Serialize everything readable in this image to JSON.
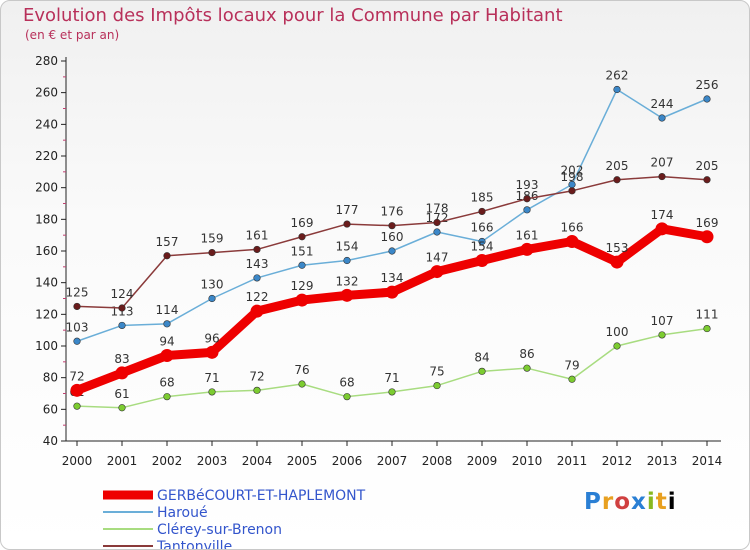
{
  "header": {
    "title": "Evolution des Impôts locaux pour la Commune par Habitant",
    "subtitle": "(en € et par an)"
  },
  "logo": {
    "letters": [
      "P",
      "r",
      "o",
      "x",
      "i",
      "t",
      "i"
    ],
    "text": "Proxiti"
  },
  "chart_data": {
    "type": "line",
    "title": "Evolution des Impôts locaux pour la Commune par Habitant",
    "subtitle": "(en € et par an)",
    "xlabel": "",
    "ylabel": "",
    "x": [
      2000,
      2001,
      2002,
      2003,
      2004,
      2005,
      2006,
      2007,
      2008,
      2009,
      2010,
      2011,
      2012,
      2013,
      2014
    ],
    "ylim": [
      40,
      280
    ],
    "yticks": [
      40,
      60,
      80,
      100,
      120,
      140,
      160,
      180,
      200,
      220,
      240,
      260,
      280
    ],
    "grid": false,
    "legend_position": "bottom-left",
    "series": [
      {
        "name": "GERBéCOURT-ET-HAPLEMONT",
        "color": "#ee0000",
        "marker_color": "#ee0000",
        "emphasis": true,
        "values": [
          72,
          83,
          94,
          96,
          122,
          129,
          132,
          134,
          147,
          154,
          161,
          166,
          153,
          174,
          169
        ]
      },
      {
        "name": "Haroué",
        "color": "#6aaed8",
        "marker_color": "#3b87c8",
        "emphasis": false,
        "values": [
          103,
          113,
          114,
          130,
          143,
          151,
          154,
          160,
          172,
          166,
          186,
          202,
          262,
          244,
          256
        ]
      },
      {
        "name": "Clérey-sur-Brenon",
        "color": "#a8dc80",
        "marker_color": "#7ccc30",
        "emphasis": false,
        "values": [
          62,
          61,
          68,
          71,
          72,
          76,
          68,
          71,
          75,
          84,
          86,
          79,
          100,
          107,
          111
        ]
      },
      {
        "name": "Tantonville",
        "color": "#8a3a3a",
        "marker_color": "#6a1c1c",
        "emphasis": false,
        "values": [
          125,
          124,
          157,
          159,
          161,
          169,
          177,
          176,
          178,
          185,
          193,
          198,
          205,
          207,
          205
        ]
      }
    ]
  }
}
